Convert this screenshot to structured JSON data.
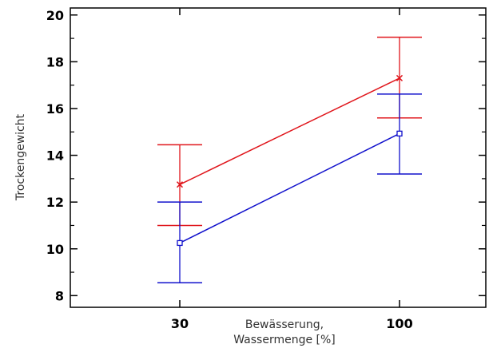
{
  "chart_data": {
    "type": "line",
    "xlabel_lines": [
      "Bewässerung,",
      "Wassermenge [%]"
    ],
    "ylabel": "Trockengewicht",
    "categories": [
      "30",
      "100"
    ],
    "ylim": [
      7.5,
      20.3
    ],
    "yticks": [
      8,
      10,
      12,
      14,
      16,
      18,
      20
    ],
    "grid": false,
    "series": [
      {
        "color": "#e0151b",
        "marker": "x",
        "values": [
          12.75,
          17.3
        ],
        "error_low": [
          11.0,
          15.6
        ],
        "error_high": [
          14.45,
          19.05
        ]
      },
      {
        "color": "#1111cc",
        "marker": "square",
        "values": [
          10.25,
          14.93
        ],
        "error_low": [
          8.55,
          13.2
        ],
        "error_high": [
          12.0,
          16.62
        ]
      }
    ]
  }
}
